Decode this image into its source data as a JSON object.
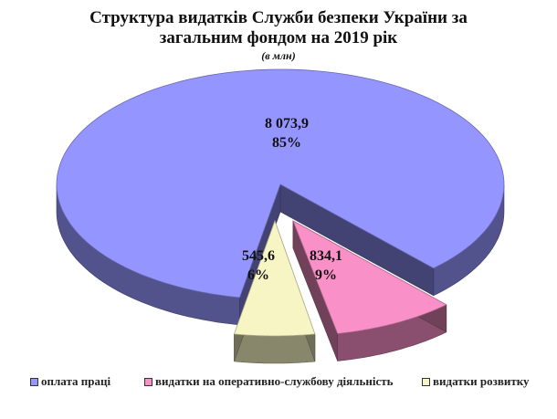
{
  "colors": {
    "labor": "#9595ff",
    "operational": "#fa90c8",
    "development": "#f8f5c5"
  },
  "chart_data": {
    "type": "pie",
    "title_line1": "Структура видатків Служби безпеки України за",
    "title_line2": "загальним фондом на 2019 рік",
    "subtitle": "(в млн)",
    "legend_position": "bottom",
    "series": [
      {
        "name": "оплата праці",
        "value": "8 073,9",
        "numeric": 8073.9,
        "percent": "85%"
      },
      {
        "name": "видатки на оперативно-службову діяльність",
        "value": "834,1",
        "numeric": 834.1,
        "percent": "9%"
      },
      {
        "name": "видатки розвитку",
        "value": "545,6",
        "numeric": 545.6,
        "percent": "6%"
      }
    ]
  }
}
